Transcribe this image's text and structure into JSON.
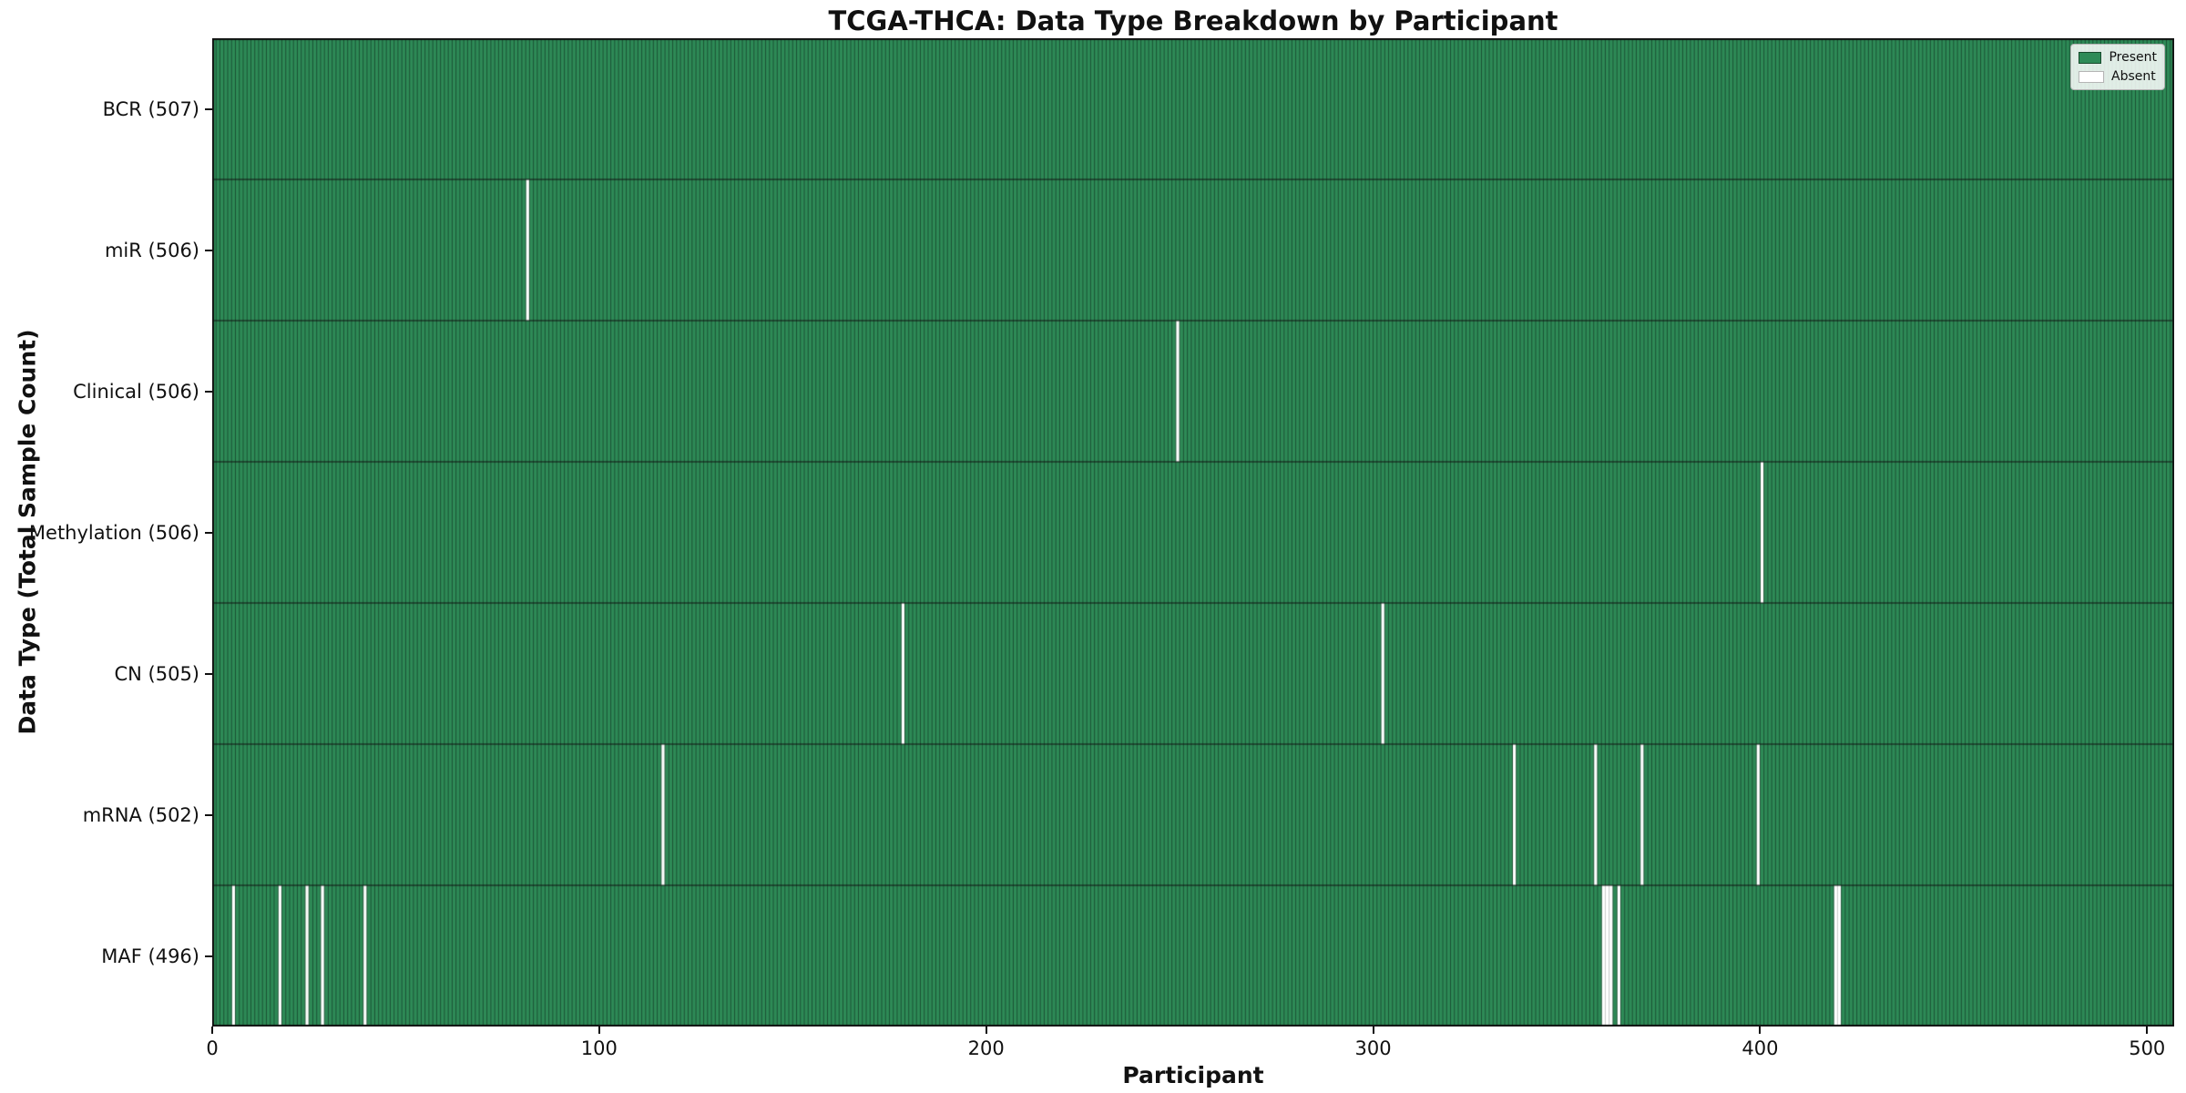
{
  "chart_data": {
    "type": "heatmap",
    "title": "TCGA-THCA: Data Type Breakdown by Participant",
    "xlabel": "Participant",
    "ylabel": "Data Type (Total Sample Count)",
    "x_ticks": [
      0,
      100,
      200,
      300,
      400,
      500
    ],
    "x_range": [
      0,
      507
    ],
    "n_participants": 507,
    "legend": [
      {
        "label": "Present",
        "color": "#2e8b57"
      },
      {
        "label": "Absent",
        "color": "#ffffff"
      }
    ],
    "rows": [
      {
        "label": "BCR (507)",
        "name": "BCR",
        "total": 507,
        "absent": []
      },
      {
        "label": "miR (506)",
        "name": "miR",
        "total": 506,
        "absent": [
          81
        ]
      },
      {
        "label": "Clinical (506)",
        "name": "Clinical",
        "total": 506,
        "absent": [
          249
        ]
      },
      {
        "label": "Methylation (506)",
        "name": "Methylation",
        "total": 506,
        "absent": [
          400
        ]
      },
      {
        "label": "CN (505)",
        "name": "CN",
        "total": 505,
        "absent": [
          178,
          302
        ]
      },
      {
        "label": "mRNA (502)",
        "name": "mRNA",
        "total": 502,
        "absent": [
          116,
          336,
          357,
          369,
          399
        ]
      },
      {
        "label": "MAF (496)",
        "name": "MAF",
        "total": 496,
        "absent": [
          5,
          17,
          24,
          28,
          39,
          359,
          360,
          361,
          363,
          419,
          420
        ]
      }
    ],
    "colors": {
      "present": "#2e8b57",
      "absent": "#ffffff",
      "cell_edge": "#1b5134",
      "absent_edge": "#cccccc",
      "row_separator": "#101010",
      "plot_border": "#111111",
      "legend_present_border": "#174a2c",
      "legend_absent_border": "#b5b5b5"
    }
  }
}
